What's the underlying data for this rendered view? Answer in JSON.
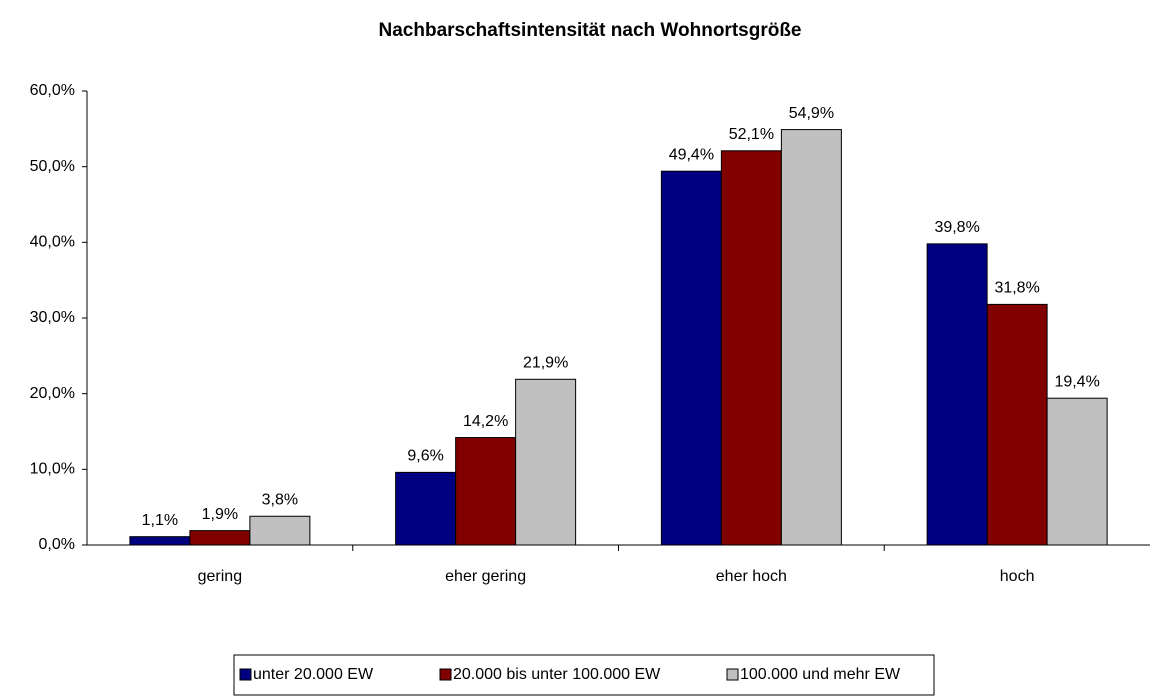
{
  "chart_data": {
    "type": "bar",
    "title": "Nachbarschaftsintensität nach Wohnortsgröße",
    "categories": [
      "gering",
      "eher gering",
      "eher hoch",
      "hoch"
    ],
    "series": [
      {
        "name": "unter 20.000 EW",
        "color": "#000080",
        "values": [
          1.1,
          9.6,
          49.4,
          39.8
        ],
        "value_labels": [
          "1,1%",
          "9,6%",
          "49,4%",
          "39,8%"
        ]
      },
      {
        "name": "20.000 bis unter 100.000 EW",
        "color": "#800000",
        "values": [
          1.9,
          14.2,
          52.1,
          31.8
        ],
        "value_labels": [
          "1,9%",
          "14,2%",
          "52,1%",
          "31,8%"
        ]
      },
      {
        "name": "100.000 und mehr EW",
        "color": "#c0c0c0",
        "values": [
          3.8,
          21.9,
          54.9,
          19.4
        ],
        "value_labels": [
          "3,8%",
          "21,9%",
          "54,9%",
          "19,4%"
        ]
      }
    ],
    "ylim": [
      0,
      60
    ],
    "yticks": [
      {
        "value": 0,
        "label": "0,0%"
      },
      {
        "value": 10,
        "label": "10,0%"
      },
      {
        "value": 20,
        "label": "20,0%"
      },
      {
        "value": 30,
        "label": "30,0%"
      },
      {
        "value": 40,
        "label": "40,0%"
      },
      {
        "value": 50,
        "label": "50,0%"
      },
      {
        "value": 60,
        "label": "60,0%"
      }
    ],
    "grid": false,
    "legend": "bottom"
  }
}
